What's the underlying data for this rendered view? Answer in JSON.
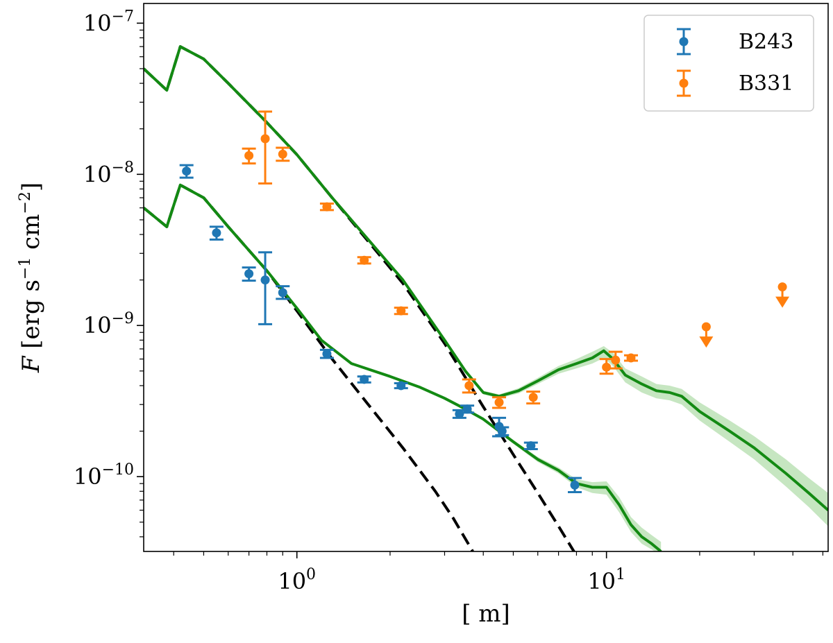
{
  "chart_data": {
    "type": "scatter",
    "xscale": "log",
    "yscale": "log",
    "xlim": [
      0.32,
      52
    ],
    "ylim": [
      3.2e-11,
      1.35e-07
    ],
    "xlabel": "[ m]",
    "ylabel_var": "F",
    "ylabel_units": "[erg s",
    "ylabel_exp1": "−1",
    "ylabel_mid": " cm",
    "ylabel_exp2": "−2",
    "ylabel_close": "]",
    "xticks": [
      {
        "value": 1,
        "base": "10",
        "exp": "0"
      },
      {
        "value": 10,
        "base": "10",
        "exp": "1"
      }
    ],
    "yticks": [
      {
        "value": 1e-07,
        "base": "10",
        "exp": "−7"
      },
      {
        "value": 1e-08,
        "base": "10",
        "exp": "−8"
      },
      {
        "value": 1e-09,
        "base": "10",
        "exp": "−9"
      },
      {
        "value": 1e-10,
        "base": "10",
        "exp": "−10"
      }
    ],
    "legend_position": "top-right",
    "colors": {
      "B243": "#1f77b4",
      "B331": "#ff7f0e",
      "model": "#138a13",
      "band": "#a8d8a0",
      "stellar": "#000000"
    },
    "series": [
      {
        "name": "B243",
        "color": "#1f77b4",
        "points": [
          {
            "x": 0.44,
            "y": 1.05e-08,
            "ylo": 9.5e-09,
            "yhi": 1.15e-08
          },
          {
            "x": 0.55,
            "y": 4.1e-09,
            "ylo": 3.7e-09,
            "yhi": 4.5e-09
          },
          {
            "x": 0.7,
            "y": 2.2e-09,
            "ylo": 1.98e-09,
            "yhi": 2.42e-09
          },
          {
            "x": 0.79,
            "y": 2e-09,
            "ylo": 1.02e-09,
            "yhi": 3.05e-09
          },
          {
            "x": 0.9,
            "y": 1.65e-09,
            "ylo": 1.5e-09,
            "yhi": 1.82e-09
          },
          {
            "x": 1.25,
            "y": 6.5e-10,
            "ylo": 6.1e-10,
            "yhi": 6.9e-10
          },
          {
            "x": 1.65,
            "y": 4.4e-10,
            "ylo": 4.2e-10,
            "yhi": 4.6e-10
          },
          {
            "x": 2.17,
            "y": 4e-10,
            "ylo": 3.85e-10,
            "yhi": 4.15e-10
          },
          {
            "x": 3.35,
            "y": 2.6e-10,
            "ylo": 2.45e-10,
            "yhi": 2.75e-10
          },
          {
            "x": 3.55,
            "y": 2.8e-10,
            "ylo": 2.65e-10,
            "yhi": 2.95e-10
          },
          {
            "x": 4.5,
            "y": 2.15e-10,
            "ylo": 1.85e-10,
            "yhi": 2.45e-10
          },
          {
            "x": 4.6,
            "y": 2e-10,
            "ylo": 1.88e-10,
            "yhi": 2.12e-10
          },
          {
            "x": 5.7,
            "y": 1.6e-10,
            "ylo": 1.52e-10,
            "yhi": 1.68e-10
          },
          {
            "x": 7.9,
            "y": 8.8e-11,
            "ylo": 7.9e-11,
            "yhi": 9.8e-11
          }
        ]
      },
      {
        "name": "B331",
        "color": "#ff7f0e",
        "points": [
          {
            "x": 0.7,
            "y": 1.33e-08,
            "ylo": 1.18e-08,
            "yhi": 1.48e-08
          },
          {
            "x": 0.79,
            "y": 1.72e-08,
            "ylo": 8.7e-09,
            "yhi": 2.6e-08
          },
          {
            "x": 0.9,
            "y": 1.36e-08,
            "ylo": 1.23e-08,
            "yhi": 1.5e-08
          },
          {
            "x": 1.25,
            "y": 6.1e-09,
            "ylo": 5.8e-09,
            "yhi": 6.4e-09
          },
          {
            "x": 1.65,
            "y": 2.7e-09,
            "ylo": 2.57e-09,
            "yhi": 2.83e-09
          },
          {
            "x": 2.17,
            "y": 1.25e-09,
            "ylo": 1.19e-09,
            "yhi": 1.31e-09
          },
          {
            "x": 3.6,
            "y": 4e-10,
            "ylo": 3.6e-10,
            "yhi": 4.4e-10
          },
          {
            "x": 4.5,
            "y": 3.1e-10,
            "ylo": 2.85e-10,
            "yhi": 3.35e-10
          },
          {
            "x": 5.8,
            "y": 3.35e-10,
            "ylo": 3.05e-10,
            "yhi": 3.65e-10
          },
          {
            "x": 10.0,
            "y": 5.3e-10,
            "ylo": 4.8e-10,
            "yhi": 6e-10
          },
          {
            "x": 10.7,
            "y": 5.9e-10,
            "ylo": 5.2e-10,
            "yhi": 6.7e-10
          },
          {
            "x": 12.0,
            "y": 6.1e-10,
            "ylo": 5.85e-10,
            "yhi": 6.35e-10
          }
        ],
        "upper_limits": [
          {
            "x": 21.0,
            "y": 9.8e-10
          },
          {
            "x": 37.0,
            "y": 1.8e-09
          }
        ]
      }
    ],
    "model_curves": [
      {
        "name": "B331 model",
        "x": [
          0.32,
          0.38,
          0.42,
          0.5,
          0.6,
          0.8,
          1.0,
          1.3,
          1.7,
          2.2,
          3.0,
          3.5,
          4.0,
          4.5,
          5.2,
          6.0,
          7.0,
          8.0,
          9.0,
          9.8,
          10.5,
          11.5,
          13.0,
          14.5,
          16.0,
          17.5,
          20.0,
          25.0,
          30.0,
          38.0,
          45.0,
          52.0
        ],
        "y": [
          5e-08,
          3.6e-08,
          7e-08,
          5.8e-08,
          4e-08,
          2.2e-08,
          1.35e-08,
          7e-09,
          3.7e-09,
          2e-09,
          8e-10,
          5e-10,
          3.6e-10,
          3.4e-10,
          3.7e-10,
          4.3e-10,
          5.1e-10,
          5.6e-10,
          6.1e-10,
          6.8e-10,
          6e-10,
          4.7e-10,
          4.1e-10,
          3.7e-10,
          3.6e-10,
          3.4e-10,
          2.7e-10,
          2e-10,
          1.55e-10,
          1.05e-10,
          7.8e-11,
          6e-11
        ],
        "band_lo": [
          5e-08,
          3.6e-08,
          7e-08,
          5.8e-08,
          4e-08,
          2.2e-08,
          1.35e-08,
          7e-09,
          3.7e-09,
          2e-09,
          8e-10,
          4.9e-10,
          3.5e-10,
          3.3e-10,
          3.55e-10,
          4.1e-10,
          4.8e-10,
          5.2e-10,
          5.6e-10,
          6.1e-10,
          5.4e-10,
          4.2e-10,
          3.6e-10,
          3.3e-10,
          3.2e-10,
          3e-10,
          2.35e-10,
          1.7e-10,
          1.3e-10,
          8.6e-11,
          6.3e-11,
          4.7e-11
        ],
        "band_hi": [
          5e-08,
          3.6e-08,
          7e-08,
          5.8e-08,
          4e-08,
          2.2e-08,
          1.35e-08,
          7e-09,
          3.7e-09,
          2e-09,
          8e-10,
          5.1e-10,
          3.7e-10,
          3.5e-10,
          3.85e-10,
          4.5e-10,
          5.4e-10,
          6e-10,
          6.7e-10,
          7.3e-10,
          6.6e-10,
          5.2e-10,
          4.6e-10,
          4.1e-10,
          4e-10,
          3.8e-10,
          3.1e-10,
          2.35e-10,
          1.85e-10,
          1.3e-10,
          9.8e-11,
          7.8e-11
        ]
      },
      {
        "name": "B243 model",
        "x": [
          0.32,
          0.38,
          0.42,
          0.5,
          0.6,
          0.8,
          1.0,
          1.2,
          1.5,
          2.0,
          2.5,
          3.0,
          3.5,
          4.0,
          5.0,
          6.0,
          7.0,
          8.0,
          9.0,
          10.0,
          11.0,
          12.0,
          13.0,
          14.0,
          15.0
        ],
        "y": [
          6e-09,
          4.5e-09,
          8.5e-09,
          7e-09,
          4.5e-09,
          2.3e-09,
          1.3e-09,
          8e-10,
          5.6e-10,
          4.6e-10,
          3.9e-10,
          3.3e-10,
          2.8e-10,
          2.4e-10,
          1.7e-10,
          1.3e-10,
          1.1e-10,
          9e-11,
          8.5e-11,
          8.5e-11,
          6.5e-11,
          4.8e-11,
          4e-11,
          3.6e-11,
          3.2e-11
        ],
        "band_lo": [
          6e-09,
          4.5e-09,
          8.5e-09,
          7e-09,
          4.5e-09,
          2.3e-09,
          1.3e-09,
          8e-10,
          5.6e-10,
          4.6e-10,
          3.9e-10,
          3.3e-10,
          2.75e-10,
          2.35e-10,
          1.65e-10,
          1.25e-10,
          1.05e-10,
          8.5e-11,
          7.8e-11,
          7.6e-11,
          5.8e-11,
          4.3e-11,
          3.6e-11,
          3.3e-11,
          3e-11
        ],
        "band_hi": [
          6e-09,
          4.5e-09,
          8.5e-09,
          7e-09,
          4.5e-09,
          2.3e-09,
          1.3e-09,
          8e-10,
          5.6e-10,
          4.6e-10,
          3.9e-10,
          3.3e-10,
          2.85e-10,
          2.45e-10,
          1.75e-10,
          1.35e-10,
          1.15e-10,
          9.6e-11,
          9.2e-11,
          9.3e-11,
          7.3e-11,
          5.4e-11,
          4.6e-11,
          4.1e-11,
          3.7e-11
        ]
      }
    ],
    "stellar_curves": [
      {
        "name": "B331 stellar",
        "x": [
          0.32,
          0.38,
          0.42,
          0.5,
          0.6,
          0.8,
          1.0,
          1.3,
          1.7,
          2.2,
          3.0,
          4.0,
          5.0,
          6.0,
          7.0,
          8.0
        ],
        "y": [
          5e-08,
          3.6e-08,
          7e-08,
          5.8e-08,
          4e-08,
          2.2e-08,
          1.35e-08,
          7e-09,
          3.6e-09,
          1.9e-09,
          7.6e-10,
          2.9e-10,
          1.4e-10,
          7.8e-11,
          4.7e-11,
          3e-11
        ]
      },
      {
        "name": "B243 stellar",
        "x": [
          0.32,
          0.38,
          0.42,
          0.5,
          0.6,
          0.8,
          1.0,
          1.3,
          1.7,
          2.2,
          2.8,
          3.2,
          3.7
        ],
        "y": [
          6e-09,
          4.5e-09,
          8.5e-09,
          7e-09,
          4.5e-09,
          2.3e-09,
          1.25e-09,
          6e-10,
          3e-10,
          1.55e-10,
          8e-11,
          5.3e-11,
          3.2e-11
        ]
      }
    ]
  }
}
